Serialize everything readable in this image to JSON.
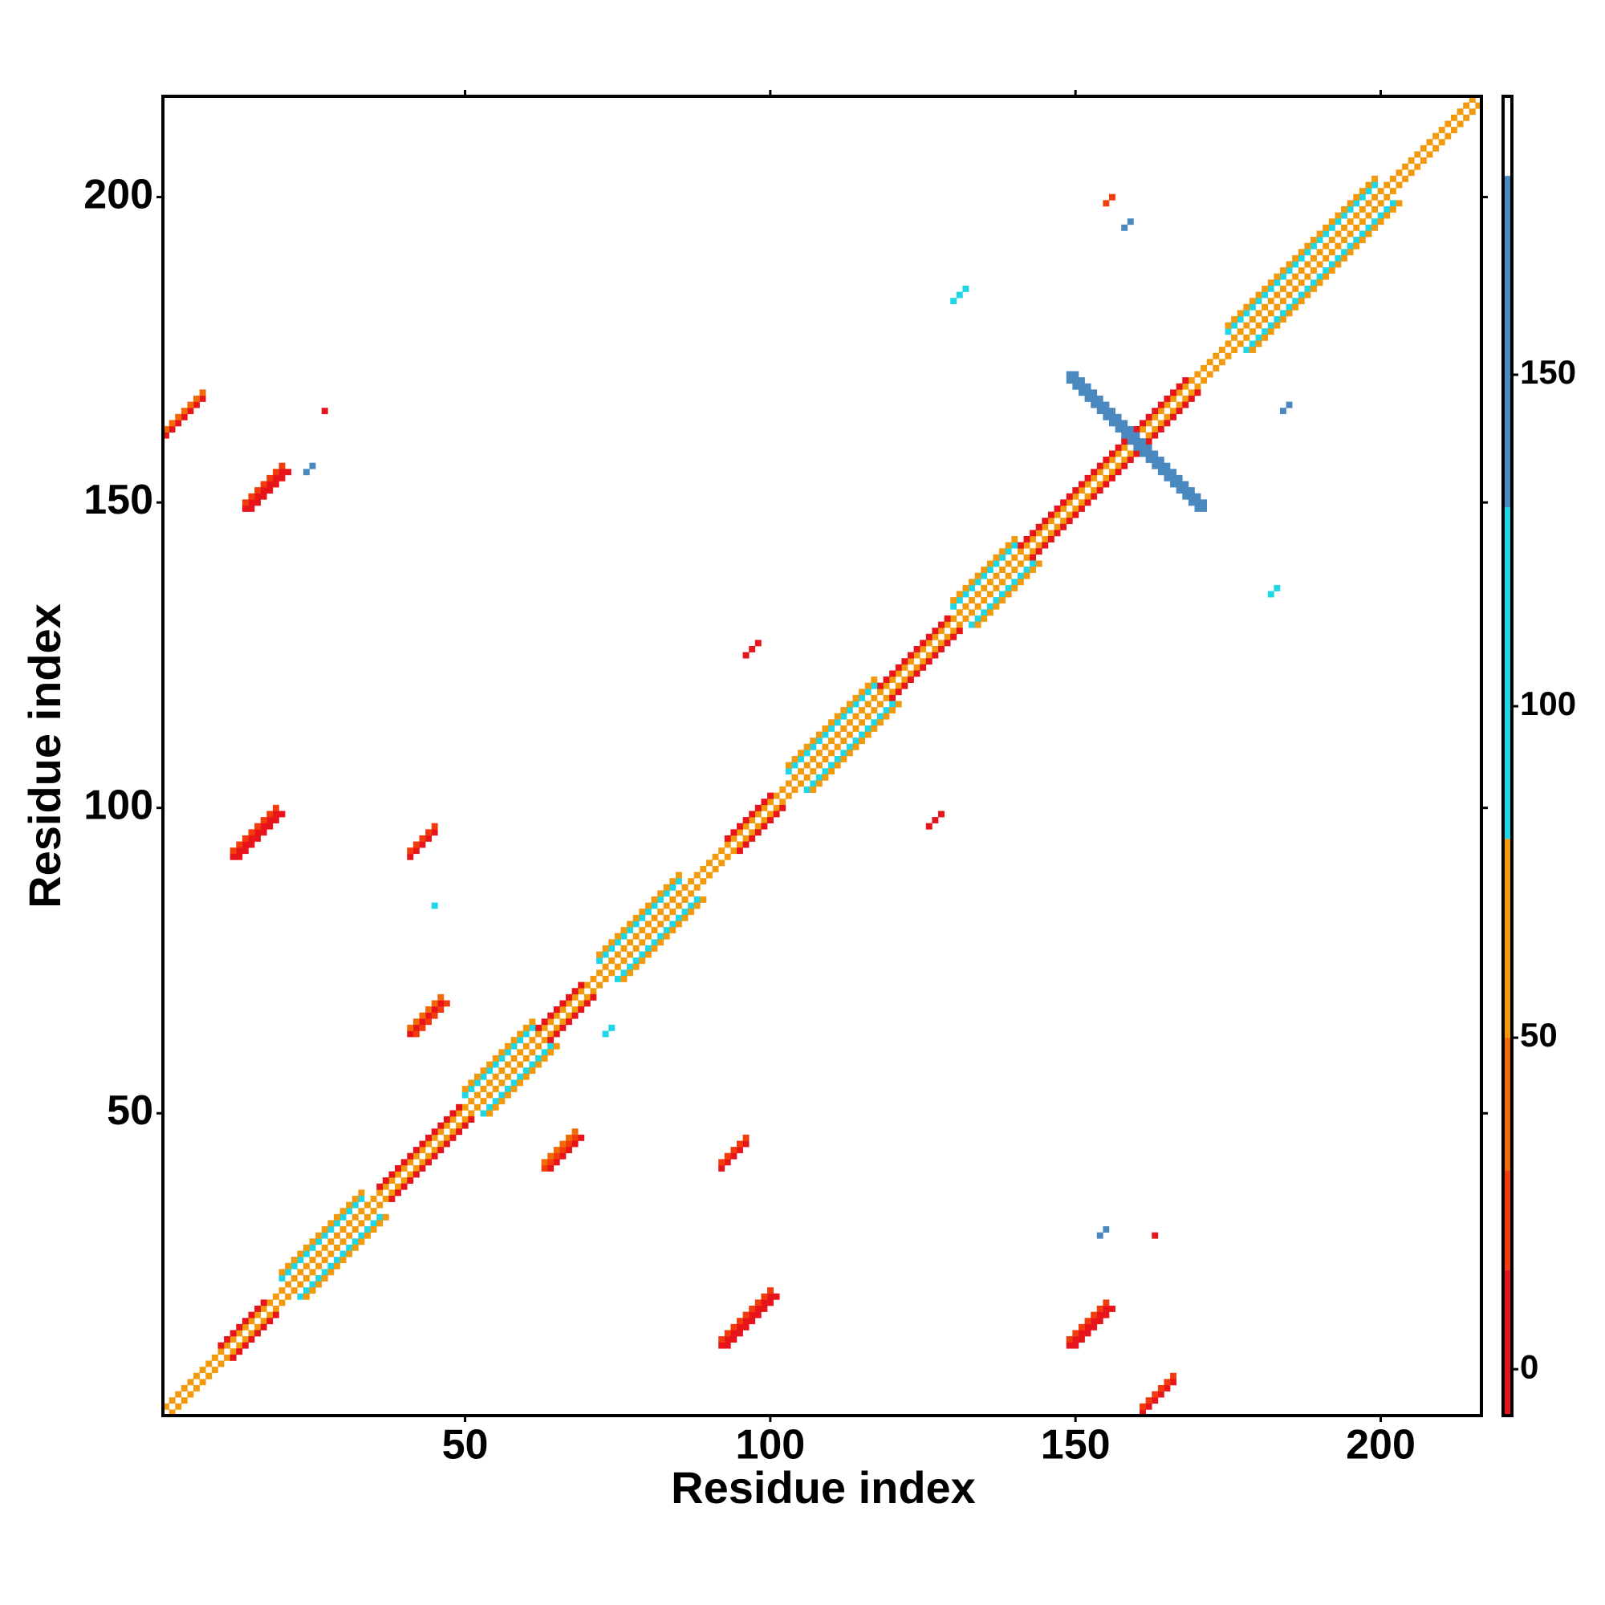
{
  "chart_data": {
    "type": "heatmap",
    "xlabel": "Residue index",
    "ylabel": "Residue index",
    "xlim": [
      0.5,
      216.5
    ],
    "ylim": [
      0.5,
      216.5
    ],
    "xticks": [
      50,
      100,
      150,
      200
    ],
    "yticks": [
      50,
      100,
      150,
      200
    ],
    "colorbar": {
      "lim": [
        -7,
        192
      ],
      "ticks": [
        0,
        50,
        100,
        150
      ],
      "breaks": [
        -7,
        15,
        30,
        50,
        80,
        130,
        180,
        192
      ],
      "colors": [
        "#e8141b",
        "#f23c0c",
        "#f26a05",
        "#f39a0c",
        "#1fd6e6",
        "#4a88c0",
        "#ffffff"
      ]
    },
    "streaks": [
      {
        "x": 1,
        "y": 2,
        "len": 215,
        "dir": 1,
        "value": 60
      },
      {
        "x": 2,
        "y": 1,
        "len": 215,
        "dir": 1,
        "value": 60
      },
      {
        "x": 10,
        "y": 12,
        "len": 8,
        "dir": 1,
        "value": 10
      },
      {
        "x": 12,
        "y": 10,
        "len": 8,
        "dir": 1,
        "value": 10
      },
      {
        "x": 36,
        "y": 38,
        "len": 14,
        "dir": 1,
        "value": 10
      },
      {
        "x": 38,
        "y": 36,
        "len": 14,
        "dir": 1,
        "value": 10
      },
      {
        "x": 62,
        "y": 64,
        "len": 8,
        "dir": 1,
        "value": 10
      },
      {
        "x": 64,
        "y": 62,
        "len": 8,
        "dir": 1,
        "value": 10
      },
      {
        "x": 93,
        "y": 95,
        "len": 8,
        "dir": 1,
        "value": 10
      },
      {
        "x": 95,
        "y": 93,
        "len": 8,
        "dir": 1,
        "value": 10
      },
      {
        "x": 118,
        "y": 120,
        "len": 12,
        "dir": 1,
        "value": 10
      },
      {
        "x": 120,
        "y": 118,
        "len": 12,
        "dir": 1,
        "value": 10
      },
      {
        "x": 141,
        "y": 143,
        "len": 28,
        "dir": 1,
        "value": 10
      },
      {
        "x": 143,
        "y": 141,
        "len": 28,
        "dir": 1,
        "value": 10
      },
      {
        "x": 20,
        "y": 23,
        "len": 14,
        "dir": 1,
        "value": 100
      },
      {
        "x": 23,
        "y": 20,
        "len": 14,
        "dir": 1,
        "value": 100
      },
      {
        "x": 20,
        "y": 24,
        "len": 14,
        "dir": 1,
        "value": 55
      },
      {
        "x": 24,
        "y": 20,
        "len": 14,
        "dir": 1,
        "value": 55
      },
      {
        "x": 50,
        "y": 53,
        "len": 12,
        "dir": 1,
        "value": 100
      },
      {
        "x": 53,
        "y": 50,
        "len": 12,
        "dir": 1,
        "value": 100
      },
      {
        "x": 50,
        "y": 54,
        "len": 12,
        "dir": 1,
        "value": 55
      },
      {
        "x": 54,
        "y": 50,
        "len": 12,
        "dir": 1,
        "value": 55
      },
      {
        "x": 72,
        "y": 75,
        "len": 14,
        "dir": 1,
        "value": 100
      },
      {
        "x": 75,
        "y": 72,
        "len": 14,
        "dir": 1,
        "value": 100
      },
      {
        "x": 72,
        "y": 76,
        "len": 14,
        "dir": 1,
        "value": 55
      },
      {
        "x": 76,
        "y": 72,
        "len": 14,
        "dir": 1,
        "value": 55
      },
      {
        "x": 103,
        "y": 106,
        "len": 15,
        "dir": 1,
        "value": 100
      },
      {
        "x": 106,
        "y": 103,
        "len": 15,
        "dir": 1,
        "value": 100
      },
      {
        "x": 103,
        "y": 107,
        "len": 15,
        "dir": 1,
        "value": 55
      },
      {
        "x": 107,
        "y": 103,
        "len": 15,
        "dir": 1,
        "value": 55
      },
      {
        "x": 130,
        "y": 133,
        "len": 11,
        "dir": 1,
        "value": 100
      },
      {
        "x": 133,
        "y": 130,
        "len": 11,
        "dir": 1,
        "value": 100
      },
      {
        "x": 130,
        "y": 134,
        "len": 11,
        "dir": 1,
        "value": 55
      },
      {
        "x": 134,
        "y": 130,
        "len": 11,
        "dir": 1,
        "value": 55
      },
      {
        "x": 175,
        "y": 178,
        "len": 25,
        "dir": 1,
        "value": 100
      },
      {
        "x": 178,
        "y": 175,
        "len": 25,
        "dir": 1,
        "value": 100
      },
      {
        "x": 175,
        "y": 179,
        "len": 25,
        "dir": 1,
        "value": 55
      },
      {
        "x": 179,
        "y": 175,
        "len": 25,
        "dir": 1,
        "value": 55
      },
      {
        "x": 149,
        "y": 171,
        "len": 23,
        "dir": -1,
        "value": 165
      },
      {
        "x": 150,
        "y": 171,
        "len": 22,
        "dir": -1,
        "value": 165
      },
      {
        "x": 149,
        "y": 170,
        "len": 22,
        "dir": -1,
        "value": 165
      },
      {
        "x": 1,
        "y": 161,
        "len": 7,
        "dir": 1,
        "value": 10
      },
      {
        "x": 1,
        "y": 162,
        "len": 7,
        "dir": 1,
        "value": 40
      },
      {
        "x": 14,
        "y": 149,
        "len": 7,
        "dir": 1,
        "value": 5
      },
      {
        "x": 14,
        "y": 150,
        "len": 7,
        "dir": 1,
        "value": 20
      },
      {
        "x": 15,
        "y": 149,
        "len": 7,
        "dir": 1,
        "value": 10
      },
      {
        "x": 12,
        "y": 92,
        "len": 8,
        "dir": 1,
        "value": 5
      },
      {
        "x": 12,
        "y": 93,
        "len": 8,
        "dir": 1,
        "value": 20
      },
      {
        "x": 13,
        "y": 92,
        "len": 8,
        "dir": 1,
        "value": 10
      },
      {
        "x": 41,
        "y": 92,
        "len": 5,
        "dir": 1,
        "value": 5
      },
      {
        "x": 41,
        "y": 93,
        "len": 5,
        "dir": 1,
        "value": 20
      },
      {
        "x": 41,
        "y": 63,
        "len": 6,
        "dir": 1,
        "value": 10
      },
      {
        "x": 41,
        "y": 64,
        "len": 6,
        "dir": 1,
        "value": 40
      },
      {
        "x": 42,
        "y": 63,
        "len": 6,
        "dir": 1,
        "value": 20
      },
      {
        "x": 63,
        "y": 41,
        "len": 6,
        "dir": 1,
        "value": 20
      },
      {
        "x": 63,
        "y": 42,
        "len": 6,
        "dir": 1,
        "value": 40
      },
      {
        "x": 64,
        "y": 41,
        "len": 6,
        "dir": 1,
        "value": 10
      },
      {
        "x": 92,
        "y": 41,
        "len": 5,
        "dir": 1,
        "value": 5
      },
      {
        "x": 92,
        "y": 42,
        "len": 5,
        "dir": 1,
        "value": 20
      },
      {
        "x": 92,
        "y": 12,
        "len": 9,
        "dir": 1,
        "value": 5
      },
      {
        "x": 92,
        "y": 13,
        "len": 9,
        "dir": 1,
        "value": 20
      },
      {
        "x": 93,
        "y": 12,
        "len": 9,
        "dir": 1,
        "value": 10
      },
      {
        "x": 149,
        "y": 12,
        "len": 7,
        "dir": 1,
        "value": 5
      },
      {
        "x": 149,
        "y": 13,
        "len": 7,
        "dir": 1,
        "value": 20
      },
      {
        "x": 150,
        "y": 12,
        "len": 7,
        "dir": 1,
        "value": 10
      },
      {
        "x": 161,
        "y": 1,
        "len": 6,
        "dir": 1,
        "value": 5
      },
      {
        "x": 161,
        "y": 2,
        "len": 6,
        "dir": 1,
        "value": 20
      },
      {
        "x": 96,
        "y": 125,
        "len": 3,
        "dir": 1,
        "value": 10
      },
      {
        "x": 126,
        "y": 97,
        "len": 3,
        "dir": 1,
        "value": 10
      },
      {
        "x": 130,
        "y": 183,
        "len": 3,
        "dir": 1,
        "value": 100
      },
      {
        "x": 158,
        "y": 195,
        "len": 2,
        "dir": 1,
        "value": 140
      },
      {
        "x": 184,
        "y": 165,
        "len": 2,
        "dir": 1,
        "value": 140
      },
      {
        "x": 182,
        "y": 135,
        "len": 2,
        "dir": 1,
        "value": 100
      },
      {
        "x": 73,
        "y": 63,
        "len": 2,
        "dir": 1,
        "value": 100
      },
      {
        "x": 45,
        "y": 84,
        "len": 1,
        "dir": 1,
        "value": 100
      },
      {
        "x": 24,
        "y": 155,
        "len": 2,
        "dir": 1,
        "value": 140
      },
      {
        "x": 27,
        "y": 165,
        "len": 1,
        "dir": 1,
        "value": 10
      },
      {
        "x": 154,
        "y": 30,
        "len": 2,
        "dir": 1,
        "value": 140
      },
      {
        "x": 163,
        "y": 30,
        "len": 1,
        "dir": 1,
        "value": 10
      },
      {
        "x": 155,
        "y": 199,
        "len": 2,
        "dir": 1,
        "value": 20
      }
    ]
  }
}
